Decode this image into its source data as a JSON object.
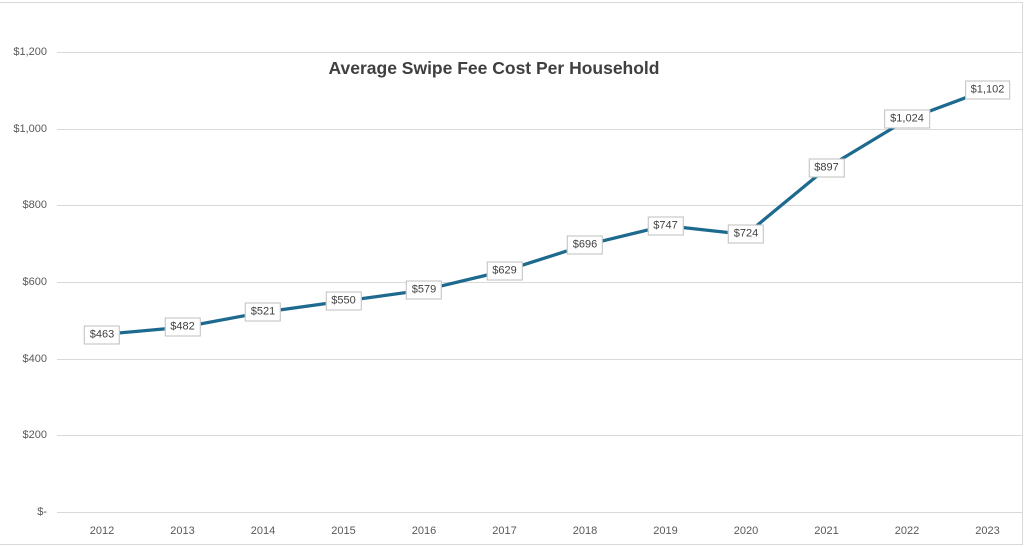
{
  "chart_data": {
    "type": "line",
    "title": "Average Swipe Fee Cost Per Household",
    "categories": [
      "2012",
      "2013",
      "2014",
      "2015",
      "2016",
      "2017",
      "2018",
      "2019",
      "2020",
      "2021",
      "2022",
      "2023"
    ],
    "series": [
      {
        "name": "Average Swipe Fee Cost Per Household",
        "values": [
          463,
          482,
          521,
          550,
          579,
          629,
          696,
          747,
          724,
          897,
          1024,
          1102
        ],
        "data_labels": [
          "$463",
          "$482",
          "$521",
          "$550",
          "$579",
          "$629",
          "$696",
          "$747",
          "$724",
          "$897",
          "$1,024",
          "$1,102"
        ]
      }
    ],
    "xlabel": "",
    "ylabel": "",
    "ylim": [
      0,
      1200
    ],
    "y_tick_interval": 200,
    "y_ticks": [
      {
        "value": 1200,
        "label": "$1,200"
      },
      {
        "value": 1000,
        "label": "$1,000"
      },
      {
        "value": 800,
        "label": "$800"
      },
      {
        "value": 600,
        "label": "$600"
      },
      {
        "value": 400,
        "label": "$400"
      },
      {
        "value": 200,
        "label": "$200"
      },
      {
        "value": 0,
        "label": "$-"
      }
    ],
    "grid": "horizontal",
    "legend_position": "none",
    "colors": {
      "line": "#1E6A8E",
      "gridline": "#D9D9D9",
      "chart_border": "#D9D9D9",
      "axis_text": "#595959",
      "title_text": "#3F3F3F",
      "data_label_text": "#404040",
      "data_label_bg": "#FFFFFF",
      "data_label_border": "#BFBFBF",
      "background": "#FFFFFF"
    }
  }
}
